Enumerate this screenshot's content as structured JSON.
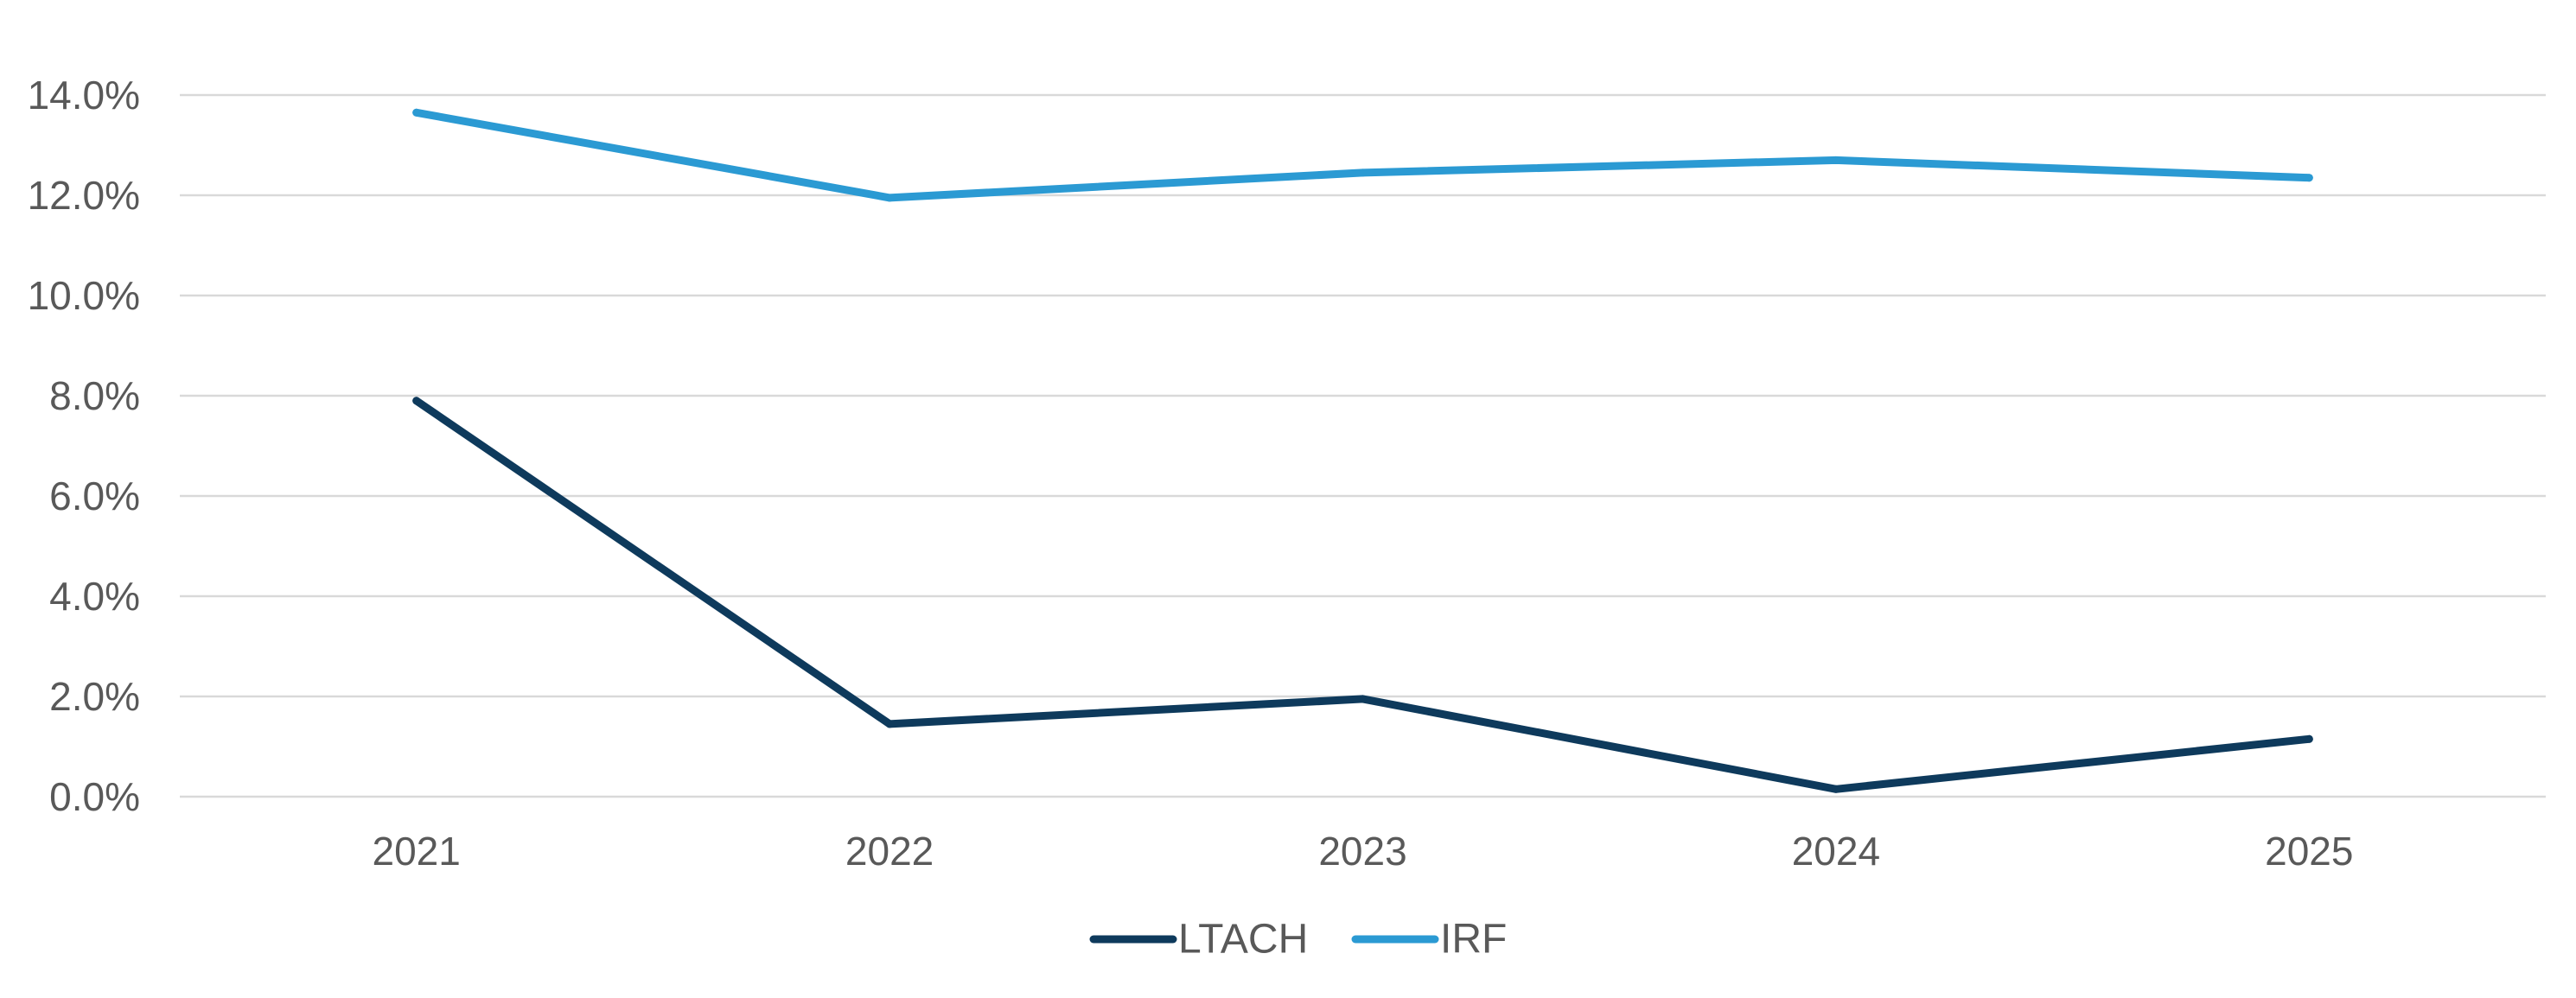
{
  "chart_data": {
    "type": "line",
    "title": "",
    "xlabel": "",
    "ylabel": "",
    "categories": [
      "2021",
      "2022",
      "2023",
      "2024",
      "2025"
    ],
    "y_ticks": [
      "0.0%",
      "2.0%",
      "4.0%",
      "6.0%",
      "8.0%",
      "10.0%",
      "12.0%",
      "14.0%"
    ],
    "ylim": [
      0,
      14
    ],
    "y_unit": "%",
    "grid": true,
    "legend_position": "bottom-center",
    "series": [
      {
        "name": "LTACH",
        "color": "#0e3a5c",
        "values": [
          7.9,
          1.45,
          1.95,
          0.15,
          1.15
        ]
      },
      {
        "name": "IRF",
        "color": "#2b9ad3",
        "values": [
          13.65,
          11.95,
          12.45,
          12.7,
          12.35
        ]
      }
    ]
  }
}
